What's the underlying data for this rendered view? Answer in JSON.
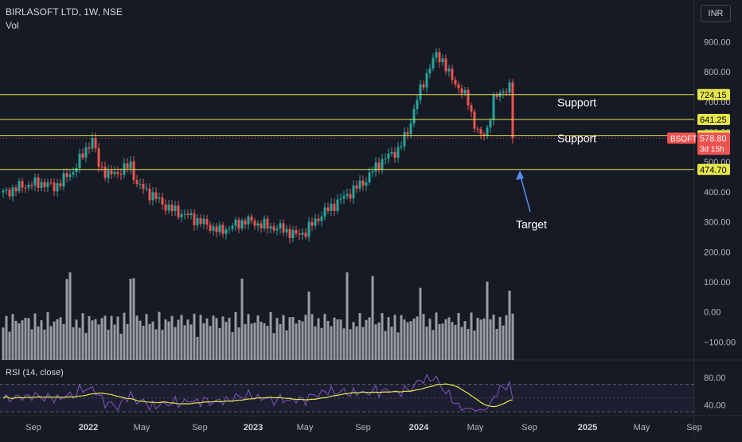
{
  "header": {
    "title": "BIRLASOFT LTD, 1W, NSE",
    "volume_label": "Vol",
    "currency": "INR"
  },
  "colors": {
    "background": "#161a25",
    "up": "#26a69a",
    "down": "#ef5350",
    "level_line": "#e5e64b",
    "volume_bar": "#9a9ca3",
    "rsi_line": "#7e57c2",
    "rsi_ma": "#e5e64b",
    "arrow": "#5b8def"
  },
  "chart_data": {
    "type": "candlestick",
    "price_axis": {
      "ticks": [
        "900.00",
        "800.00",
        "700.00",
        "600.00",
        "500.00",
        "400.00",
        "300.00",
        "200.00",
        "100.00",
        "0.00",
        "−100.00"
      ],
      "range": [
        -130,
        950
      ]
    },
    "rsi_axis": {
      "ticks": [
        "80.00",
        "40.00"
      ],
      "band": [
        30,
        70
      ],
      "range": [
        28,
        95
      ]
    },
    "x_axis": {
      "labels": [
        "Sep",
        "2022",
        "May",
        "Sep",
        "2023",
        "May",
        "Sep",
        "2024",
        "May",
        "Sep",
        "2025",
        "May",
        "Sep"
      ],
      "bold": [
        "2022",
        "2023",
        "2024",
        "2025"
      ]
    },
    "price_path": [
      [
        0,
        395
      ],
      [
        6,
        420
      ],
      [
        12,
        430
      ],
      [
        16,
        415
      ],
      [
        22,
        470
      ],
      [
        27,
        560
      ],
      [
        28,
        575
      ],
      [
        30,
        490
      ],
      [
        33,
        455
      ],
      [
        37,
        470
      ],
      [
        40,
        490
      ],
      [
        42,
        425
      ],
      [
        46,
        395
      ],
      [
        52,
        345
      ],
      [
        58,
        320
      ],
      [
        64,
        290
      ],
      [
        68,
        268
      ],
      [
        72,
        285
      ],
      [
        76,
        305
      ],
      [
        82,
        288
      ],
      [
        88,
        275
      ],
      [
        92,
        255
      ],
      [
        95,
        268
      ],
      [
        99,
        315
      ],
      [
        103,
        350
      ],
      [
        108,
        390
      ],
      [
        114,
        440
      ],
      [
        116,
        470
      ],
      [
        119,
        505
      ],
      [
        124,
        540
      ],
      [
        127,
        600
      ],
      [
        130,
        710
      ],
      [
        134,
        820
      ],
      [
        136,
        855
      ],
      [
        138,
        840
      ],
      [
        140,
        790
      ],
      [
        144,
        735
      ],
      [
        146,
        700
      ],
      [
        148,
        625
      ],
      [
        150,
        580
      ],
      [
        152,
        610
      ],
      [
        154,
        705
      ],
      [
        157,
        740
      ],
      [
        159,
        745
      ],
      [
        160,
        580
      ]
    ],
    "last_price": "578.80",
    "countdown": "3d 15h",
    "ticker": "BSOFT",
    "levels": [
      {
        "value": 724.15,
        "label": "724.15"
      },
      {
        "value": 641.25,
        "label": "641.25"
      },
      {
        "value": 586.8,
        "label": "586.80"
      },
      {
        "value": 474.7,
        "label": "474.70"
      }
    ],
    "annotations": [
      {
        "text": "Support",
        "price": 695
      },
      {
        "text": "Support",
        "price": 576
      },
      {
        "text": "Target",
        "price": 290
      }
    ],
    "rsi_label": "RSI (14, close)"
  }
}
